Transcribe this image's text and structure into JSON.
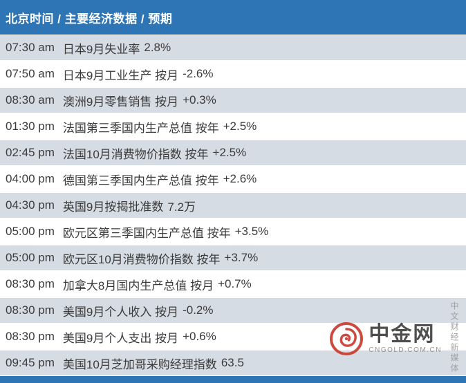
{
  "header": {
    "title": "北京时间 / 主要经济数据 /  预期"
  },
  "chart_data": {
    "type": "table",
    "title": "北京时间 / 主要经济数据 / 预期",
    "columns": [
      "北京时间",
      "主要经济数据",
      "预期"
    ],
    "rows": [
      {
        "time": "07:30 am",
        "event": "日本9月失业率",
        "value": "2.8%"
      },
      {
        "time": "07:50 am",
        "event": "日本9月工业生产 按月",
        "value": "-2.6%"
      },
      {
        "time": "08:30 am",
        "event": "澳洲9月零售销售 按月",
        "value": "+0.3%"
      },
      {
        "time": "01:30 pm",
        "event": "法国第三季国内生产总值 按年",
        "value": "+2.5%"
      },
      {
        "time": "02:45 pm",
        "event": "法国10月消费物价指数 按年",
        "value": "+2.5%"
      },
      {
        "time": "04:00 pm",
        "event": "德国第三季国内生产总值 按年",
        "value": "+2.6%"
      },
      {
        "time": "04:30 pm",
        "event": "英国9月按揭批准数",
        "value": "7.2万"
      },
      {
        "time": "05:00 pm",
        "event": "欧元区第三季国内生产总值 按年",
        "value": "+3.5%"
      },
      {
        "time": "05:00 pm",
        "event": "欧元区10月消费物价指数 按年",
        "value": "+3.7%"
      },
      {
        "time": "08:30 pm",
        "event": "加拿大8月国内生产总值 按月",
        "value": "+0.7%"
      },
      {
        "time": "08:30 pm",
        "event": "美国9月个人收入 按月",
        "value": "-0.2%"
      },
      {
        "time": "08:30 pm",
        "event": "美国9月个人支出 按月",
        "value": "+0.6%"
      },
      {
        "time": "09:45 pm",
        "event": "美国10月芝加哥采购经理指数",
        "value": "63.5"
      }
    ]
  },
  "watermark": {
    "brand": "中金网",
    "domain": "CNGOLD.COM.CN",
    "tagline": "中文财经新媒体"
  },
  "colors": {
    "header_bg": "#2E75B6",
    "band_bg": "#D6DCE4",
    "text": "#3B3B3B",
    "logo_red": "#C9372C"
  }
}
